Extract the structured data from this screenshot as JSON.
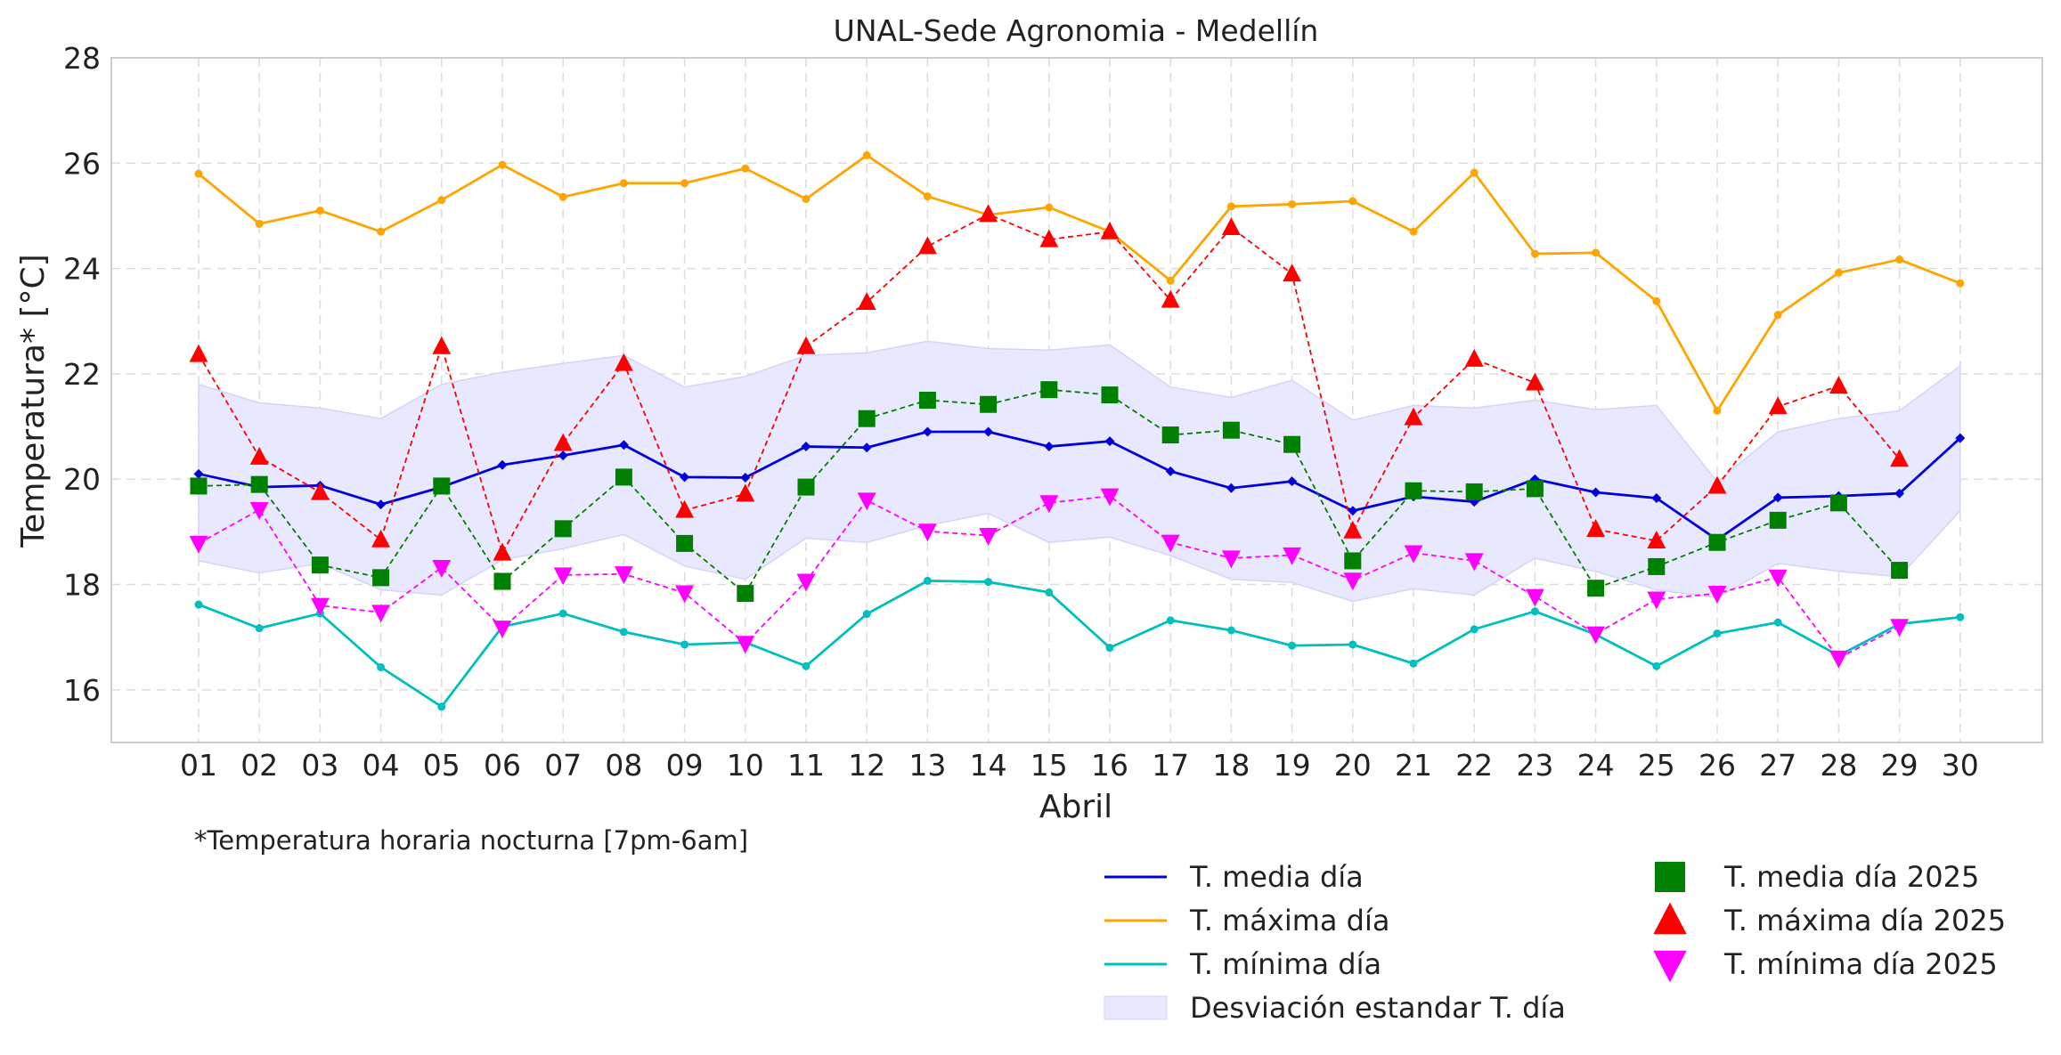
{
  "chart_data": {
    "type": "line",
    "title": "UNAL-Sede Agronomia - Medellín",
    "xlabel": "Abril",
    "ylabel": "Temperatura* [°C]",
    "note": "*Temperatura horaria nocturna [7pm-6am]",
    "ylim": [
      15,
      28
    ],
    "yticks": [
      "16",
      "18",
      "20",
      "22",
      "24",
      "26",
      "28"
    ],
    "grid": true,
    "legend_position": "bottom-right, below plot",
    "categories": [
      "01",
      "02",
      "03",
      "04",
      "05",
      "06",
      "07",
      "08",
      "09",
      "10",
      "11",
      "12",
      "13",
      "14",
      "15",
      "16",
      "17",
      "18",
      "19",
      "20",
      "21",
      "22",
      "23",
      "24",
      "25",
      "26",
      "27",
      "28",
      "29",
      "30"
    ],
    "series": [
      {
        "name": "T. media día",
        "color": "#0000dd",
        "style": "solid",
        "marker": "diamond",
        "values": [
          20.1,
          19.85,
          19.88,
          19.52,
          19.85,
          20.27,
          20.45,
          20.65,
          20.04,
          20.03,
          20.62,
          20.6,
          20.9,
          20.9,
          20.62,
          20.72,
          20.15,
          19.83,
          19.96,
          19.4,
          19.67,
          19.57,
          20.0,
          19.75,
          19.64,
          18.85,
          19.65,
          19.68,
          19.73,
          20.78
        ]
      },
      {
        "name": "T. máxima día",
        "color": "#ffa500",
        "style": "solid",
        "marker": "circle",
        "values": [
          25.8,
          24.85,
          25.1,
          24.7,
          25.3,
          25.97,
          25.36,
          25.62,
          25.62,
          25.9,
          25.32,
          26.15,
          25.37,
          25.02,
          25.16,
          24.7,
          23.77,
          25.18,
          25.22,
          25.28,
          24.7,
          25.82,
          24.28,
          24.3,
          23.38,
          21.3,
          23.12,
          23.92,
          24.17,
          23.72
        ]
      },
      {
        "name": "T. mínima día",
        "color": "#00bfbf",
        "style": "solid",
        "marker": "circle",
        "values": [
          17.62,
          17.17,
          17.45,
          16.43,
          15.68,
          17.2,
          17.45,
          17.1,
          16.86,
          16.9,
          16.45,
          17.44,
          18.07,
          18.05,
          17.85,
          16.8,
          17.32,
          17.13,
          16.84,
          16.86,
          16.5,
          17.15,
          17.49,
          17.05,
          16.45,
          17.07,
          17.28,
          16.65,
          17.25,
          17.38
        ]
      },
      {
        "name": "T. media día 2025",
        "color": "#008000",
        "style": "dashed",
        "marker": "square",
        "values": [
          19.87,
          19.9,
          18.37,
          18.13,
          19.87,
          18.06,
          19.06,
          20.04,
          18.78,
          17.83,
          19.85,
          21.15,
          21.5,
          21.42,
          21.7,
          21.6,
          20.84,
          20.93,
          20.66,
          18.45,
          19.78,
          19.76,
          19.82,
          17.93,
          18.34,
          18.8,
          19.22,
          19.55,
          18.27,
          null
        ]
      },
      {
        "name": "T. máxima día 2025",
        "color": "#ff0000",
        "style": "dashed",
        "marker": "triangle-up",
        "values": [
          22.37,
          20.42,
          19.75,
          18.85,
          22.52,
          18.6,
          20.68,
          22.2,
          19.41,
          19.72,
          22.52,
          23.36,
          24.42,
          25.03,
          24.55,
          24.7,
          23.4,
          24.78,
          23.9,
          19.02,
          21.17,
          22.28,
          21.83,
          19.05,
          18.83,
          19.87,
          21.38,
          21.77,
          20.38,
          null
        ]
      },
      {
        "name": "T. mínima día 2025",
        "color": "#ff00ff",
        "style": "dashed",
        "marker": "triangle-down",
        "values": [
          18.78,
          19.42,
          17.6,
          17.47,
          18.32,
          17.17,
          18.18,
          18.2,
          17.84,
          16.88,
          18.06,
          19.6,
          19.01,
          18.93,
          19.55,
          19.68,
          18.8,
          18.5,
          18.56,
          18.08,
          18.6,
          18.45,
          17.77,
          17.06,
          17.72,
          17.83,
          18.14,
          16.6,
          17.2,
          null
        ]
      }
    ],
    "band": {
      "name": "Desviación estandar T. día",
      "color": "#e8e8ff",
      "upper": [
        21.8,
        21.45,
        21.35,
        21.15,
        21.8,
        22.03,
        22.2,
        22.35,
        21.75,
        21.95,
        22.35,
        22.4,
        22.62,
        22.48,
        22.45,
        22.55,
        21.75,
        21.55,
        21.88,
        21.12,
        21.4,
        21.35,
        21.5,
        21.32,
        21.4,
        19.95,
        20.9,
        21.15,
        21.3,
        22.15
      ],
      "lower": [
        18.45,
        18.22,
        18.4,
        17.9,
        17.8,
        18.47,
        18.68,
        18.95,
        18.35,
        18.1,
        18.88,
        18.8,
        19.12,
        19.35,
        18.8,
        18.9,
        18.55,
        18.1,
        18.04,
        17.68,
        17.92,
        17.8,
        18.5,
        18.25,
        17.9,
        17.75,
        18.4,
        18.25,
        18.15,
        19.4
      ]
    },
    "legend": [
      {
        "label": "T. media día",
        "kind": "line",
        "color": "#0000dd"
      },
      {
        "label": "T. máxima día",
        "kind": "line",
        "color": "#ffa500"
      },
      {
        "label": "T. mínima día",
        "kind": "line",
        "color": "#00bfbf"
      },
      {
        "label": "Desviación estandar T. día",
        "kind": "patch",
        "color": "#e8e8ff"
      },
      {
        "label": "T. media día 2025",
        "kind": "square",
        "color": "#008000"
      },
      {
        "label": "T. máxima día 2025",
        "kind": "triangle-up",
        "color": "#ff0000"
      },
      {
        "label": "T. mínima día 2025",
        "kind": "triangle-down",
        "color": "#ff00ff"
      }
    ]
  }
}
